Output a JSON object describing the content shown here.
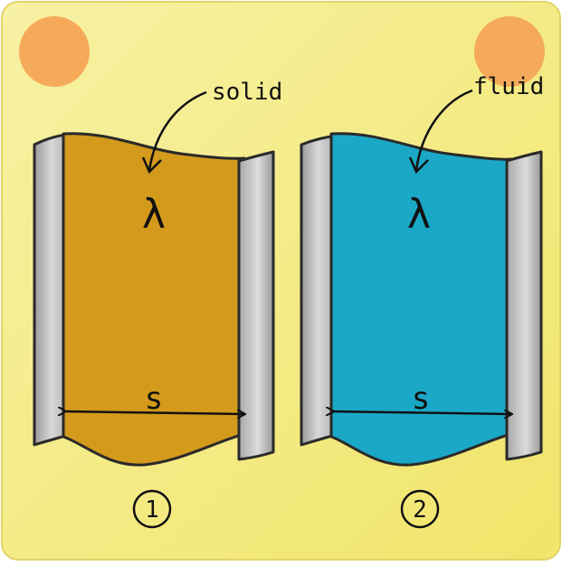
{
  "colors": {
    "background": "#f4ec8a",
    "corner_dot": "#f5aa5a",
    "wall": "#b9b9b9",
    "outline": "#2a2a2a",
    "solid_layer": "#d39a1c",
    "fluid_layer": "#1ba8c6"
  },
  "panels": [
    {
      "label": "solid",
      "symbol": "λ",
      "thickness_label": "s",
      "number": "1",
      "material": "solid"
    },
    {
      "label": "fluid",
      "symbol": "λ",
      "thickness_label": "s",
      "number": "2",
      "material": "fluid"
    }
  ]
}
